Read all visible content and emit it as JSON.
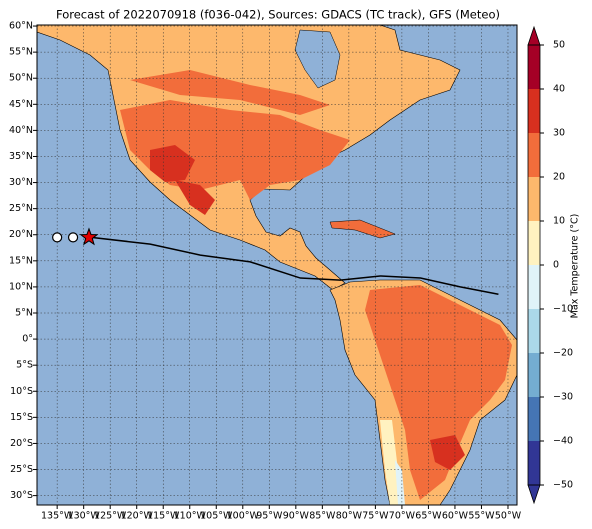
{
  "map": {
    "title": "Forecast of 2022070918 (f036-042), Sources: GDACS (TC track), GFS (Meteo)",
    "xlim": [
      -138.8,
      -48.3
    ],
    "ylim": [
      -31.8,
      60.2
    ],
    "xticks": [
      {
        "value": -135,
        "label": "135°W"
      },
      {
        "value": -130,
        "label": "130°W"
      },
      {
        "value": -125,
        "label": "125°W"
      },
      {
        "value": -120,
        "label": "120°W"
      },
      {
        "value": -115,
        "label": "115°W"
      },
      {
        "value": -110,
        "label": "110°W"
      },
      {
        "value": -105,
        "label": "105°W"
      },
      {
        "value": -100,
        "label": "100°W"
      },
      {
        "value": -95,
        "label": "95°W"
      },
      {
        "value": -90,
        "label": "90°W"
      },
      {
        "value": -85,
        "label": "85°W"
      },
      {
        "value": -80,
        "label": "80°W"
      },
      {
        "value": -75,
        "label": "75°W"
      },
      {
        "value": -70,
        "label": "70°W"
      },
      {
        "value": -65,
        "label": "65°W"
      },
      {
        "value": -60,
        "label": "60°W"
      },
      {
        "value": -55,
        "label": "55°W"
      },
      {
        "value": -50,
        "label": "50°W"
      }
    ],
    "yticks": [
      {
        "value": 60,
        "label": "60°N"
      },
      {
        "value": 55,
        "label": "55°N"
      },
      {
        "value": 50,
        "label": "50°N"
      },
      {
        "value": 45,
        "label": "45°N"
      },
      {
        "value": 40,
        "label": "40°N"
      },
      {
        "value": 35,
        "label": "35°N"
      },
      {
        "value": 30,
        "label": "30°N"
      },
      {
        "value": 25,
        "label": "25°N"
      },
      {
        "value": 20,
        "label": "20°N"
      },
      {
        "value": 15,
        "label": "15°N"
      },
      {
        "value": 10,
        "label": "10°N"
      },
      {
        "value": 5,
        "label": "5°N"
      },
      {
        "value": 0,
        "label": "0°"
      },
      {
        "value": -5,
        "label": "5°S"
      },
      {
        "value": -10,
        "label": "10°S"
      },
      {
        "value": -15,
        "label": "15°S"
      },
      {
        "value": -20,
        "label": "20°S"
      },
      {
        "value": -25,
        "label": "25°S"
      },
      {
        "value": -30,
        "label": "30°S"
      }
    ],
    "grid": true,
    "track": {
      "color": "#000000",
      "lon": [
        -128.96,
        -117.45,
        -108.0,
        -98.6,
        -89.15,
        -81.6,
        -74.1,
        -66.5,
        -59.0,
        -51.8
      ],
      "lat": [
        19.55,
        18.2,
        16.1,
        14.8,
        11.7,
        11.3,
        12.1,
        11.7,
        10.0,
        8.6
      ]
    },
    "past_positions": {
      "color": "#ffffff",
      "lon": [
        -135,
        -132
      ],
      "lat": [
        19.5,
        19.5
      ]
    },
    "current_position": {
      "color": "#e00000",
      "lon": -129,
      "lat": 19.5
    },
    "colorbar": {
      "label": "Max Temperature (°C)",
      "lim": [
        -50,
        50
      ],
      "extend": "both",
      "ticks": [
        {
          "value": -50,
          "label": "−50"
        },
        {
          "value": -40,
          "label": "−40"
        },
        {
          "value": -30,
          "label": "−30"
        },
        {
          "value": -20,
          "label": "−20"
        },
        {
          "value": -10,
          "label": "−10"
        },
        0,
        10,
        20,
        30,
        40,
        50
      ],
      "colors": [
        "#313695",
        "#4575b4",
        "#74add1",
        "#abd9e9",
        "#e0f3f8",
        "#fff2c0",
        "#fdb86c",
        "#f26d3b",
        "#d7301f",
        "#a50026"
      ]
    }
  }
}
